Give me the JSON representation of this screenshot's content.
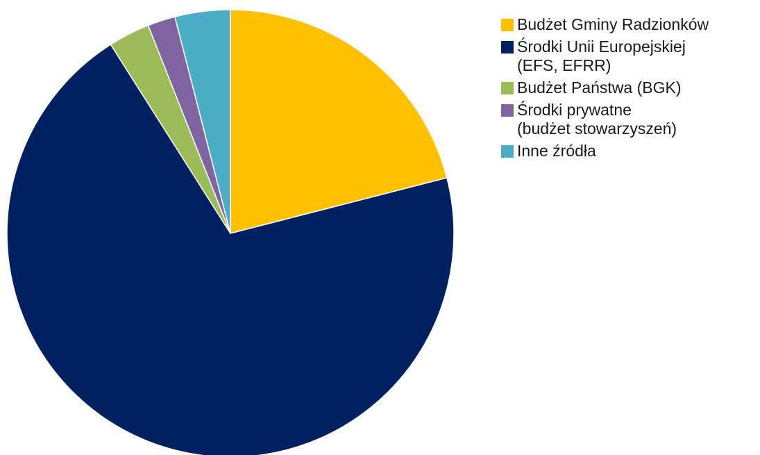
{
  "chart_data": {
    "type": "pie",
    "title": "",
    "legend_position": "right",
    "categories": [
      "Budżet Gminy Radzionków",
      "Środki Unii Europejskiej (EFS, EFRR)",
      "Budżet Państwa (BGK)",
      "Środki prywatne (budżet stowarzyszeń)",
      "Inne źródła"
    ],
    "values": [
      21.0,
      70.0,
      3.0,
      2.0,
      4.0
    ],
    "colors": [
      "#FFC000",
      "#002060",
      "#9BBB59",
      "#8064A2",
      "#4BACC6"
    ],
    "start_angle_deg": 0,
    "direction": "clockwise"
  },
  "legend": {
    "items": [
      {
        "lines": [
          "Budżet Gminy Radzionków"
        ],
        "color": "#FFC000"
      },
      {
        "lines": [
          "Środki Unii Europejskiej",
          "(EFS, EFRR)"
        ],
        "color": "#002060"
      },
      {
        "lines": [
          "Budżet Państwa (BGK)"
        ],
        "color": "#9BBB59"
      },
      {
        "lines": [
          "Środki prywatne",
          "(budżet stowarzyszeń)"
        ],
        "color": "#8064A2"
      },
      {
        "lines": [
          "Inne źródła"
        ],
        "color": "#4BACC6"
      }
    ]
  }
}
